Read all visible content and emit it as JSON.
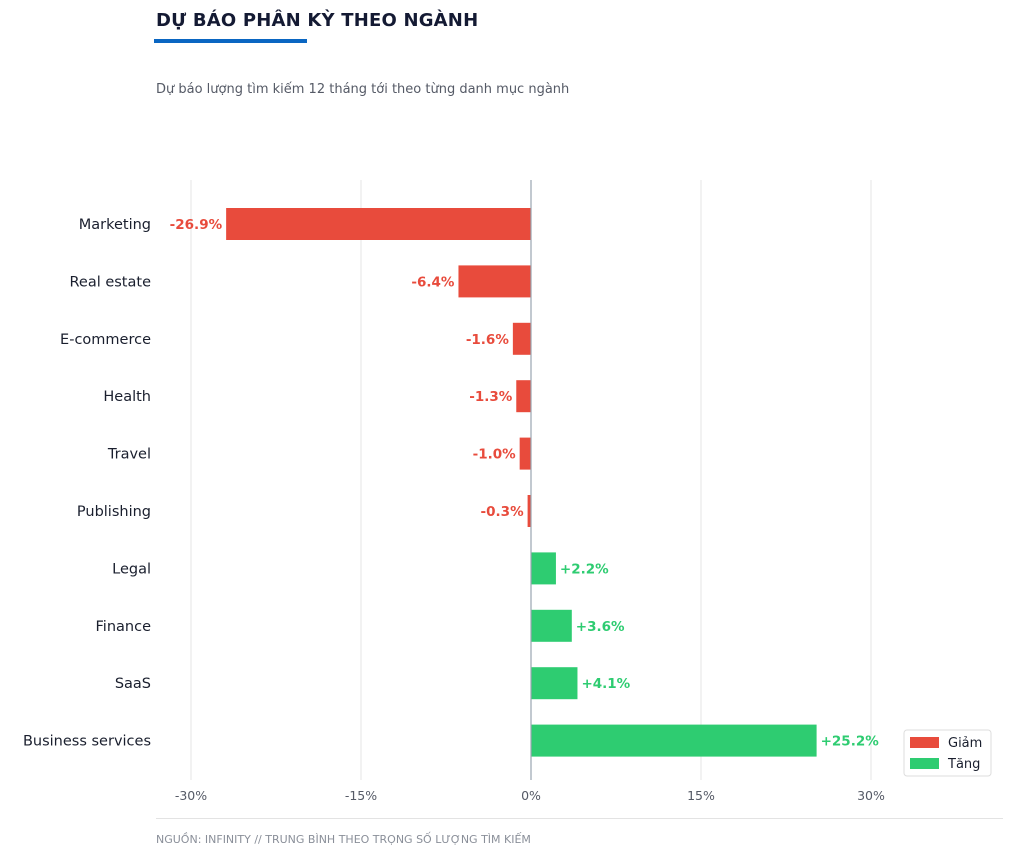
{
  "header": {
    "title": "DỰ BÁO PHÂN KỲ THEO NGÀNH",
    "subtitle": "Dự báo lượng tìm kiếm 12 tháng tới theo từng danh mục ngành",
    "accent_color": "#0a66c2"
  },
  "footer": {
    "source": "NGUỒN: INFINITY  //  TRUNG BÌNH THEO TRỌNG SỐ LƯỢNG TÌM KIẾM"
  },
  "chart_data": {
    "type": "bar",
    "orientation": "horizontal",
    "title": "",
    "xlabel": "",
    "ylabel": "",
    "xlim": [
      -30,
      30
    ],
    "x_ticks": [
      -30,
      -15,
      0,
      15,
      30
    ],
    "x_tick_labels": [
      "-30%",
      "-15%",
      "0%",
      "15%",
      "30%"
    ],
    "grid": "vertical",
    "categories": [
      "Marketing",
      "Real estate",
      "E-commerce",
      "Health",
      "Travel",
      "Publishing",
      "Legal",
      "Finance",
      "SaaS",
      "Business services"
    ],
    "values": [
      -26.9,
      -6.4,
      -1.6,
      -1.3,
      -1.0,
      -0.3,
      2.2,
      3.6,
      4.1,
      25.2
    ],
    "data_labels": [
      "-26.9%",
      "-6.4%",
      "-1.6%",
      "-1.3%",
      "-1.0%",
      "-0.3%",
      "+2.2%",
      "+3.6%",
      "+4.1%",
      "+25.2%"
    ],
    "colors": {
      "negative": "#e84b3c",
      "positive": "#2ecc71"
    },
    "legend": {
      "placement": "bottom-right",
      "entries": [
        {
          "label": "Giảm",
          "color": "#e84b3c"
        },
        {
          "label": "Tăng",
          "color": "#2ecc71"
        }
      ]
    }
  }
}
